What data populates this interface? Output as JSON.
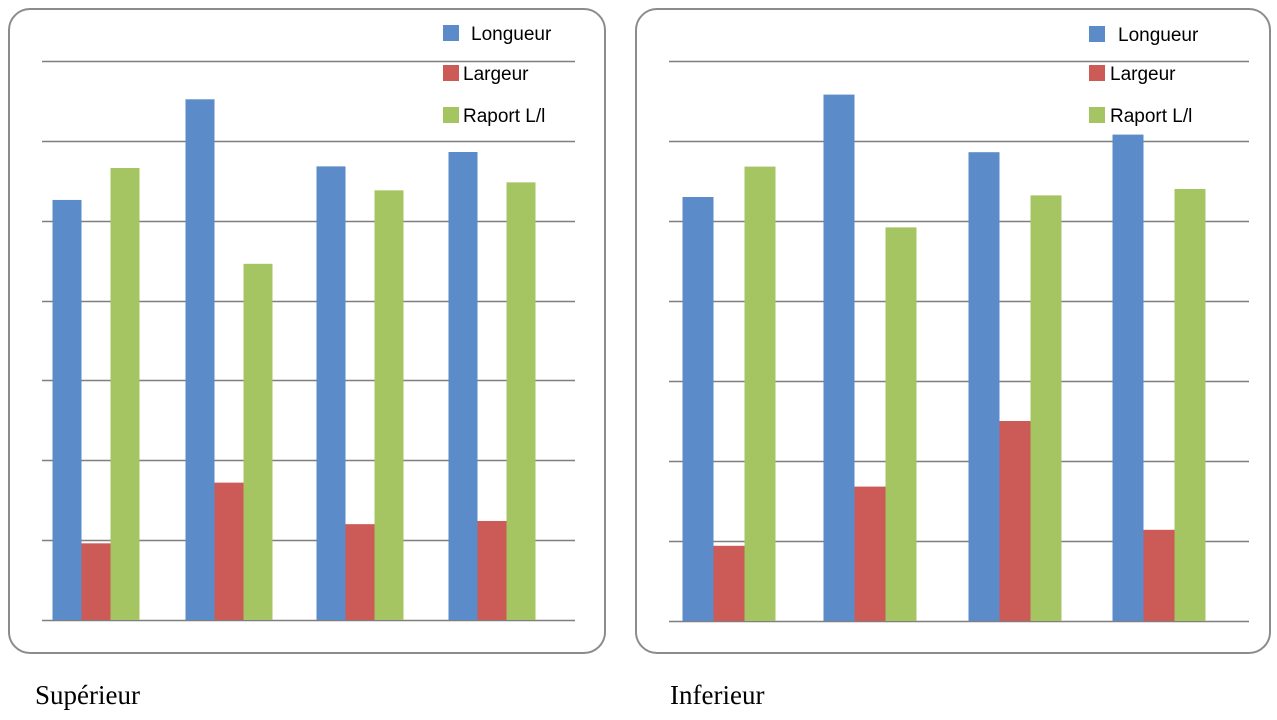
{
  "colors": {
    "longueur": "#5b8bc9",
    "largeur": "#cc5a57",
    "rapport": "#a5c462",
    "grid": "#7f7f7f"
  },
  "chart_data": [
    {
      "type": "bar",
      "title": "",
      "caption": "Supérieur",
      "xlabel": "",
      "ylabel": "",
      "ylim": [
        0,
        3.6
      ],
      "grid": true,
      "legend": "top-right",
      "categories": [
        "",
        "",
        "",
        ""
      ],
      "series": [
        {
          "name": "Longueur",
          "values": [
            2.63,
            3.26,
            2.84,
            2.93
          ]
        },
        {
          "name": "Largeur",
          "values": [
            0.48,
            0.86,
            0.6,
            0.62
          ]
        },
        {
          "name": "Raport L/l",
          "values": [
            2.83,
            2.23,
            2.69,
            2.74
          ]
        }
      ]
    },
    {
      "type": "bar",
      "title": "",
      "caption": "Inferieur",
      "xlabel": "",
      "ylabel": "",
      "ylim": [
        0,
        3.6
      ],
      "grid": true,
      "legend": "top-right",
      "categories": [
        "",
        "",
        "",
        ""
      ],
      "series": [
        {
          "name": "Longueur",
          "values": [
            2.65,
            3.29,
            2.93,
            3.04
          ]
        },
        {
          "name": "Largeur",
          "values": [
            0.47,
            0.84,
            1.25,
            0.57
          ]
        },
        {
          "name": "Raport L/l",
          "values": [
            2.84,
            2.46,
            2.66,
            2.7
          ]
        }
      ]
    }
  ]
}
